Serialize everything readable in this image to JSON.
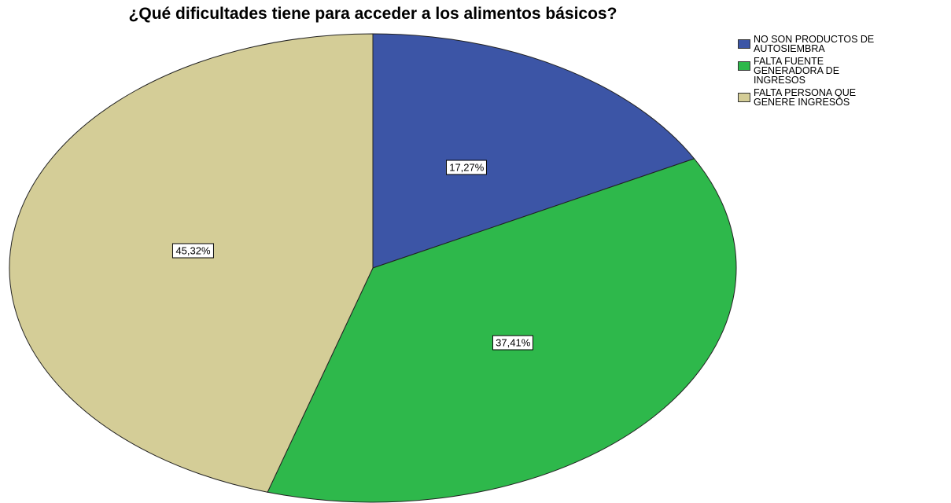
{
  "chart_data": {
    "type": "pie",
    "title": "¿Qué dificultades tiene para acceder a los alimentos básicos?",
    "categories": [
      "NO SON PRODUCTOS DE\nAUTOSIEMBRA",
      "FALTA FUENTE\nGENERADORA DE\nINGRESOS",
      "FALTA PERSONA QUE\nGENERE INGRESOS"
    ],
    "values": [
      17.27,
      37.41,
      45.32
    ],
    "value_labels": [
      "17,27%",
      "37,41%",
      "45,32%"
    ],
    "colors": [
      "#3c55a6",
      "#2eb84b",
      "#d4cd97"
    ],
    "legend": "top-right"
  }
}
